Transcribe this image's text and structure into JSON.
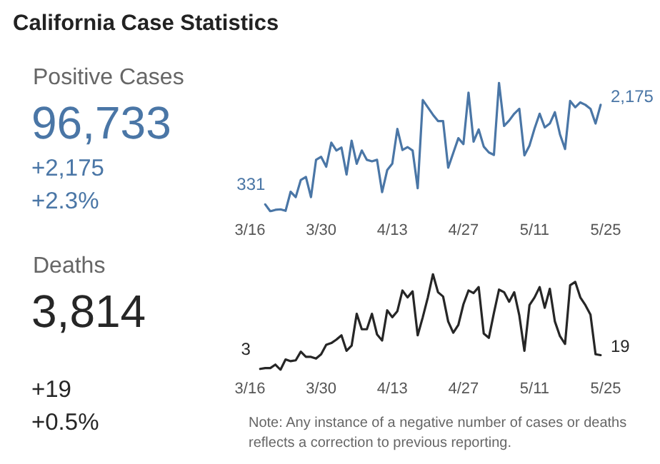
{
  "chart_data": [
    {
      "type": "other",
      "title": "California Case Statistics"
    },
    {
      "type": "other",
      "title": "Positive Cases",
      "annotations": [
        "96,733",
        "+2,175",
        "+2.3%"
      ]
    },
    {
      "type": "line",
      "x": [
        "--03-19",
        "--03-20",
        "--03-21",
        "--03-22",
        "--03-23",
        "--03-24",
        "--03-25",
        "--03-26",
        "--03-27",
        "--03-28",
        "--03-29",
        "--03-30",
        "--03-31",
        "--04-01",
        "--04-02",
        "--04-03",
        "--04-04",
        "--04-05",
        "--04-06",
        "--04-07",
        "--04-08",
        "--04-09",
        "--04-10",
        "--04-11",
        "--04-12",
        "--04-13",
        "--04-14",
        "--04-15",
        "--04-16",
        "--04-17",
        "--04-18",
        "--04-19",
        "--04-20",
        "--04-21",
        "--04-22",
        "--04-23",
        "--04-24",
        "--04-25",
        "--04-26",
        "--04-27",
        "--04-28",
        "--04-29",
        "--04-30",
        "--05-01",
        "--05-02",
        "--05-03",
        "--05-04",
        "--05-05",
        "--05-06",
        "--05-07",
        "--05-08",
        "--05-09",
        "--05-10",
        "--05-11",
        "--05-12",
        "--05-13",
        "--05-14",
        "--05-15",
        "--05-16",
        "--05-17",
        "--05-18",
        "--05-19",
        "--05-20",
        "--05-21",
        "--05-22",
        "--05-23",
        "--05-24"
      ],
      "series": [
        {
          "color": "#4a76a6",
          "values": [
            331,
            204,
            231,
            240,
            213,
            567,
            467,
            785,
            840,
            467,
            1157,
            1212,
            1030,
            1475,
            1330,
            1384,
            885,
            1511,
            1085,
            1330,
            1157,
            1130,
            1157,
            558,
            967,
            1085,
            1729,
            1339,
            1393,
            1330,
            631,
            2265,
            2129,
            1993,
            1875,
            1875,
            1012,
            1284,
            1557,
            1448,
            2401,
            1493,
            1720,
            1402,
            1294,
            1248,
            2583,
            1784,
            1884,
            2011,
            2102,
            1239,
            1421,
            1738,
            2011,
            1757,
            1829,
            2038,
            1629,
            1357,
            2247,
            2129,
            2220,
            2175,
            2102,
            1829,
            2175
          ],
          "value_labels": [
            "331",
            null,
            null,
            null,
            null,
            null,
            null,
            null,
            null,
            null,
            null,
            null,
            null,
            null,
            null,
            null,
            null,
            null,
            null,
            null,
            null,
            null,
            null,
            null,
            null,
            null,
            null,
            null,
            null,
            null,
            null,
            null,
            null,
            null,
            null,
            null,
            null,
            null,
            null,
            null,
            null,
            null,
            null,
            null,
            null,
            null,
            null,
            null,
            null,
            null,
            null,
            null,
            null,
            null,
            null,
            null,
            null,
            null,
            null,
            null,
            null,
            null,
            null,
            null,
            null,
            null,
            "2,175"
          ]
        }
      ],
      "xticks": [
        {
          "value": "--03-16",
          "label": "3/16"
        },
        {
          "value": "--03-30",
          "label": "3/30"
        },
        {
          "value": "--04-13",
          "label": "4/13"
        },
        {
          "value": "--04-27",
          "label": "4/27"
        },
        {
          "value": "--05-11",
          "label": "5/11"
        },
        {
          "value": "--05-25",
          "label": "5/25"
        }
      ],
      "xlim": [
        "--03-16",
        "--05-25"
      ]
    },
    {
      "type": "other",
      "title": "Deaths",
      "annotations": [
        "3,814",
        "+19",
        "+0.5%"
      ]
    },
    {
      "type": "line",
      "x": [
        "--03-18",
        "--03-19",
        "--03-20",
        "--03-21",
        "--03-22",
        "--03-23",
        "--03-24",
        "--03-25",
        "--03-26",
        "--03-27",
        "--03-28",
        "--03-29",
        "--03-30",
        "--03-31",
        "--04-01",
        "--04-02",
        "--04-03",
        "--04-04",
        "--04-05",
        "--04-06",
        "--04-07",
        "--04-08",
        "--04-09",
        "--04-10",
        "--04-11",
        "--04-12",
        "--04-13",
        "--04-14",
        "--04-15",
        "--04-16",
        "--04-17",
        "--04-18",
        "--04-19",
        "--04-20",
        "--04-21",
        "--04-22",
        "--04-23",
        "--04-24",
        "--04-25",
        "--04-26",
        "--04-27",
        "--04-28",
        "--04-29",
        "--04-30",
        "--05-01",
        "--05-02",
        "--05-03",
        "--05-04",
        "--05-05",
        "--05-06",
        "--05-07",
        "--05-08",
        "--05-09",
        "--05-10",
        "--05-11",
        "--05-12",
        "--05-13",
        "--05-14",
        "--05-15",
        "--05-16",
        "--05-17",
        "--05-18",
        "--05-19",
        "--05-20",
        "--05-21",
        "--05-22",
        "--05-23",
        "--05-24"
      ],
      "series": [
        {
          "color": "#262626",
          "values": [
            3,
            4,
            4,
            8,
            2,
            14,
            12,
            13,
            23,
            17,
            17,
            15,
            20,
            31,
            33,
            37,
            42,
            24,
            30,
            67,
            49,
            49,
            67,
            43,
            36,
            71,
            63,
            70,
            94,
            86,
            93,
            42,
            63,
            86,
            113,
            92,
            87,
            58,
            45,
            54,
            78,
            94,
            91,
            98,
            44,
            39,
            68,
            95,
            92,
            81,
            92,
            65,
            24,
            77,
            86,
            98,
            74,
            96,
            58,
            41,
            32,
            100,
            104,
            86,
            77,
            66,
            20,
            19
          ],
          "value_labels": [
            "3",
            null,
            null,
            null,
            null,
            null,
            null,
            null,
            null,
            null,
            null,
            null,
            null,
            null,
            null,
            null,
            null,
            null,
            null,
            null,
            null,
            null,
            null,
            null,
            null,
            null,
            null,
            null,
            null,
            null,
            null,
            null,
            null,
            null,
            null,
            null,
            null,
            null,
            null,
            null,
            null,
            null,
            null,
            null,
            null,
            null,
            null,
            null,
            null,
            null,
            null,
            null,
            null,
            null,
            null,
            null,
            null,
            null,
            null,
            null,
            null,
            null,
            null,
            null,
            null,
            null,
            null,
            "19"
          ]
        }
      ],
      "xticks": [
        {
          "value": "--03-16",
          "label": "3/16"
        },
        {
          "value": "--03-30",
          "label": "3/30"
        },
        {
          "value": "--04-13",
          "label": "4/13"
        },
        {
          "value": "--04-27",
          "label": "4/27"
        },
        {
          "value": "--05-11",
          "label": "5/11"
        },
        {
          "value": "--05-25",
          "label": "5/25"
        }
      ],
      "xlim": [
        "--03-16",
        "--05-25"
      ],
      "annotations": [
        "Note: Any instance of a negative number of cases or deaths reflects a correction to previous reporting."
      ]
    }
  ]
}
